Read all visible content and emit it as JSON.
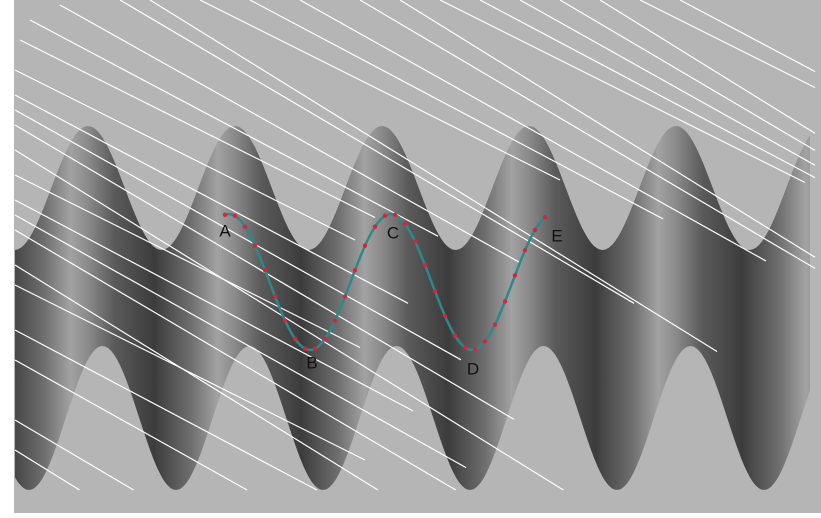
{
  "labels": [
    "A",
    "B",
    "C",
    "D",
    "E"
  ]
}
